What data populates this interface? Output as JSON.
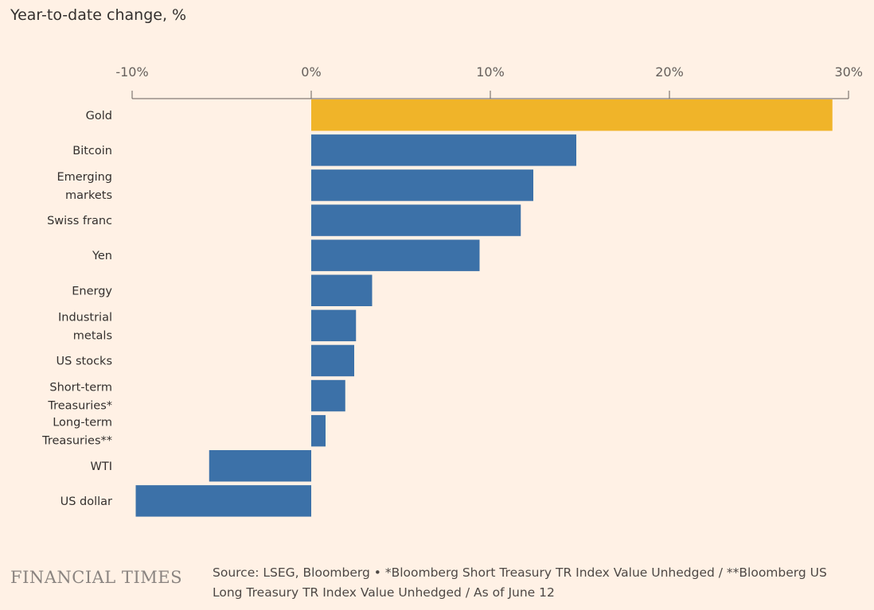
{
  "chart_data": {
    "type": "bar",
    "orientation": "horizontal",
    "title": "Year-to-date change, %",
    "xlim": [
      -10,
      30
    ],
    "xticks": [
      -10,
      0,
      10,
      20,
      30
    ],
    "tick_labels": [
      "-10%",
      "0%",
      "10%",
      "20%",
      "30%"
    ],
    "categories": [
      [
        "Gold"
      ],
      [
        "Bitcoin"
      ],
      [
        "Emerging",
        "markets"
      ],
      [
        "Swiss franc"
      ],
      [
        "Yen"
      ],
      [
        "Energy"
      ],
      [
        "Industrial",
        "metals"
      ],
      [
        "US stocks"
      ],
      [
        "Short-term",
        "Treasuries*"
      ],
      [
        "Long-term",
        "Treasuries**"
      ],
      [
        "WTI"
      ],
      [
        "US dollar"
      ]
    ],
    "values": [
      29.1,
      14.8,
      12.4,
      11.7,
      9.4,
      3.4,
      2.5,
      2.4,
      1.9,
      0.8,
      -5.7,
      -9.8
    ],
    "colors": [
      "#f0b429",
      "#3c71a8",
      "#3c71a8",
      "#3c71a8",
      "#3c71a8",
      "#3c71a8",
      "#3c71a8",
      "#3c71a8",
      "#3c71a8",
      "#3c71a8",
      "#3c71a8",
      "#3c71a8"
    ]
  },
  "footer": {
    "brand": "FINANCIAL TIMES",
    "source_line1": "Source: LSEG, Bloomberg • *Bloomberg Short Treasury TR Index Value Unhedged / **Bloomberg US",
    "source_line2": "Long Treasury TR Index Value Unhedged / As of June 12"
  },
  "colors": {
    "background": "#fff1e5",
    "axis": "#66605c"
  }
}
